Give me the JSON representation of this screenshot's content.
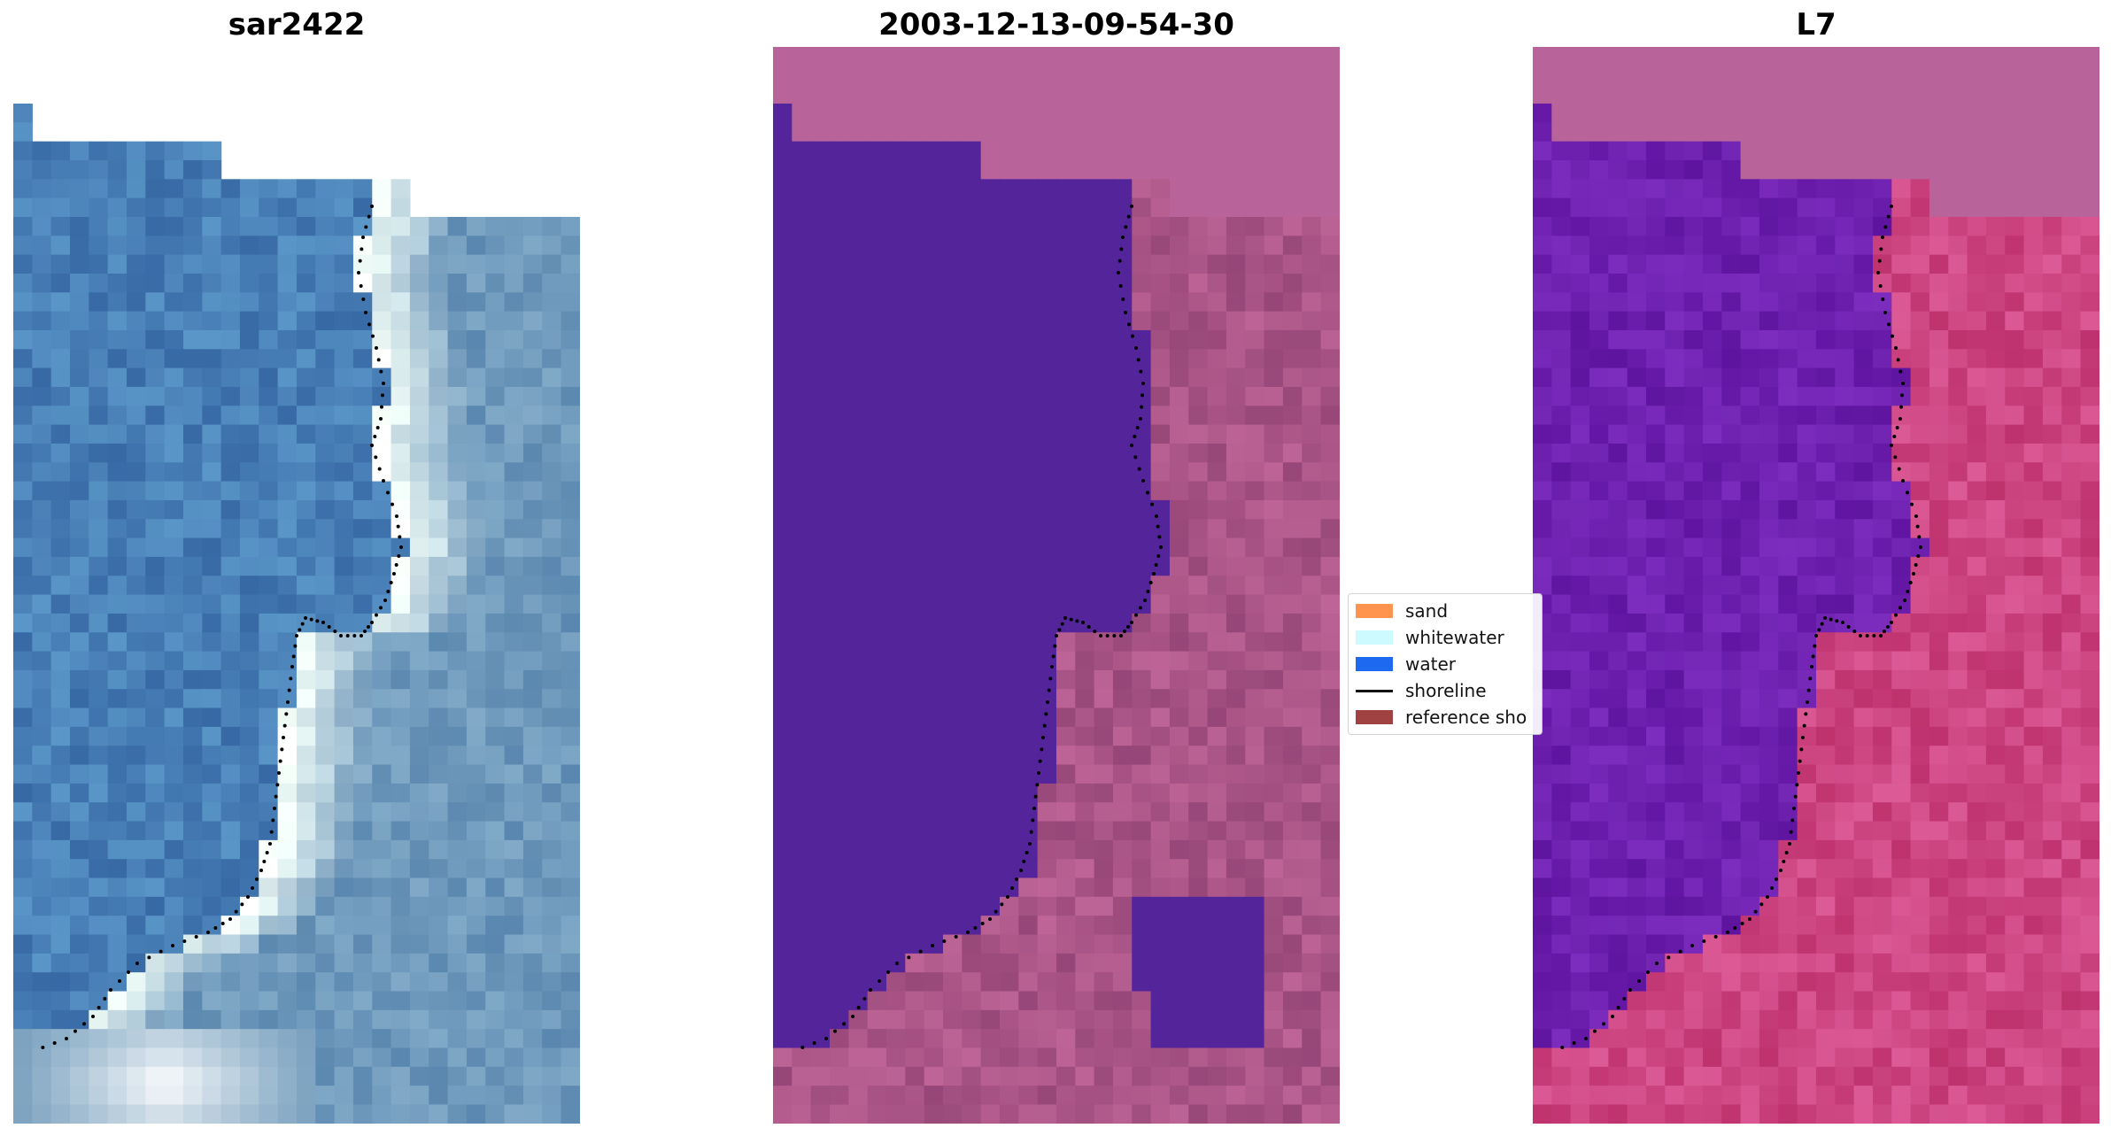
{
  "panels": [
    {
      "title": "sar2422",
      "description_icon": "rgb-image"
    },
    {
      "title": "2003-12-13-09-54-30",
      "description_icon": "classified-image"
    },
    {
      "title": "L7",
      "description_icon": "mndwi-image"
    }
  ],
  "legend": {
    "items": [
      {
        "label": "sand",
        "color": "#ff8c40",
        "kind": "patch"
      },
      {
        "label": "whitewater",
        "color": "#c8faff",
        "kind": "patch"
      },
      {
        "label": "water",
        "color": "#0a5ef0",
        "kind": "patch"
      },
      {
        "label": "shoreline",
        "color": "#000000",
        "kind": "line"
      },
      {
        "label": "reference sho",
        "color": "#993333",
        "kind": "patch"
      }
    ]
  },
  "colors": {
    "rgb_water_base": "#3a6ea8",
    "mask_base": "#b8649a",
    "water_class": "#53249a",
    "mndwi_water": "#6a1ea8",
    "mndwi_land": "#c83c78"
  }
}
